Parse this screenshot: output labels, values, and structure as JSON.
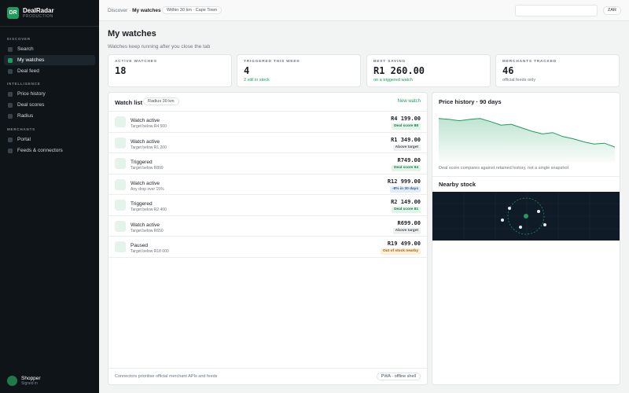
{
  "app": {
    "logo": "DR",
    "name": "DealRadar",
    "env": "PRODUCTION"
  },
  "sidebar": {
    "sections": [
      {
        "label": "DISCOVER",
        "items": [
          {
            "label": "Search",
            "active": false
          },
          {
            "label": "My watches",
            "active": true
          },
          {
            "label": "Deal feed",
            "active": false
          }
        ]
      },
      {
        "label": "INTELLIGENCE",
        "items": [
          {
            "label": "Price history",
            "active": false
          },
          {
            "label": "Deal scores",
            "active": false
          },
          {
            "label": "Radius",
            "active": false
          }
        ]
      },
      {
        "label": "MERCHANTS",
        "items": [
          {
            "label": "Portal",
            "active": false
          },
          {
            "label": "Feeds & connectors",
            "active": false
          }
        ]
      }
    ],
    "user": {
      "name": "Shopper",
      "status": "Signed in"
    }
  },
  "topbar": {
    "breadcrumb_parent": "Discover",
    "breadcrumb_sep": "·",
    "breadcrumb_current": "My watches",
    "location_badge": "Within 30 km · Cape Town",
    "search_value": "",
    "search_placeholder": "",
    "currency": "ZAR"
  },
  "page": {
    "title": "My watches",
    "subtitle": "Watches keep running after you close the tab"
  },
  "stats": [
    {
      "label": "ACTIVE WATCHES",
      "value": "18",
      "sub": ""
    },
    {
      "label": "TRIGGERED THIS WEEK",
      "value": "4",
      "sub": "2 still in stock"
    },
    {
      "label": "BEST SAVING",
      "value": "R1 260.00",
      "sub": "on a triggered watch"
    },
    {
      "label": "MERCHANTS TRACKED",
      "value": "46",
      "sub": "official feeds only"
    }
  ],
  "watch_list": {
    "title": "Watch list",
    "radius_badge": "Radius 30 km",
    "new_link": "New watch",
    "rows": [
      {
        "status": "Watch active",
        "condition": "Target below R4 500",
        "price": "R4 199.00",
        "badge": "Deal score 88",
        "badge_type": "green"
      },
      {
        "status": "Watch active",
        "condition": "Target below R1 200",
        "price": "R1 349.00",
        "badge": "Above target",
        "badge_type": "gray"
      },
      {
        "status": "Triggered",
        "condition": "Target below R899",
        "price": "R749.00",
        "badge": "Deal score 94",
        "badge_type": "green"
      },
      {
        "status": "Watch active",
        "condition": "Any drop over 15%",
        "price": "R12 999.00",
        "badge": "-8% in 30 days",
        "badge_type": "blue"
      },
      {
        "status": "Triggered",
        "condition": "Target below R2 400",
        "price": "R2 149.00",
        "badge": "Deal score 81",
        "badge_type": "green"
      },
      {
        "status": "Watch active",
        "condition": "Target below R650",
        "price": "R699.00",
        "badge": "Above target",
        "badge_type": "gray"
      },
      {
        "status": "Paused",
        "condition": "Target below R18 000",
        "price": "R19 499.00",
        "badge": "Out of stock nearby",
        "badge_type": "amber"
      }
    ],
    "footer_note": "Connectors prioritise official merchant APIs and feeds",
    "footer_badge": "PWA · offline shell"
  },
  "price_history": {
    "title": "Price history · 90 days",
    "note": "Deal score compares against retained history, not a single snapshot"
  },
  "nearby": {
    "title": "Nearby stock"
  },
  "chart_data": {
    "type": "area",
    "title": "Price history · 90 days",
    "xlabel": "",
    "ylabel": "",
    "x": [
      0,
      1,
      2,
      3,
      4,
      5,
      6,
      7,
      8,
      9,
      10,
      11,
      12,
      13,
      14,
      15,
      16,
      17
    ],
    "values": [
      95,
      93,
      90,
      93,
      95,
      88,
      80,
      82,
      74,
      66,
      60,
      63,
      54,
      49,
      42,
      37,
      39,
      30
    ],
    "ylim": [
      0,
      100
    ],
    "grid": false,
    "color": "#1f9d5c"
  },
  "colors": {
    "accent": "#1f9d5c",
    "sidebar_bg": "#0f1419",
    "map_bg": "#0f1b26"
  }
}
